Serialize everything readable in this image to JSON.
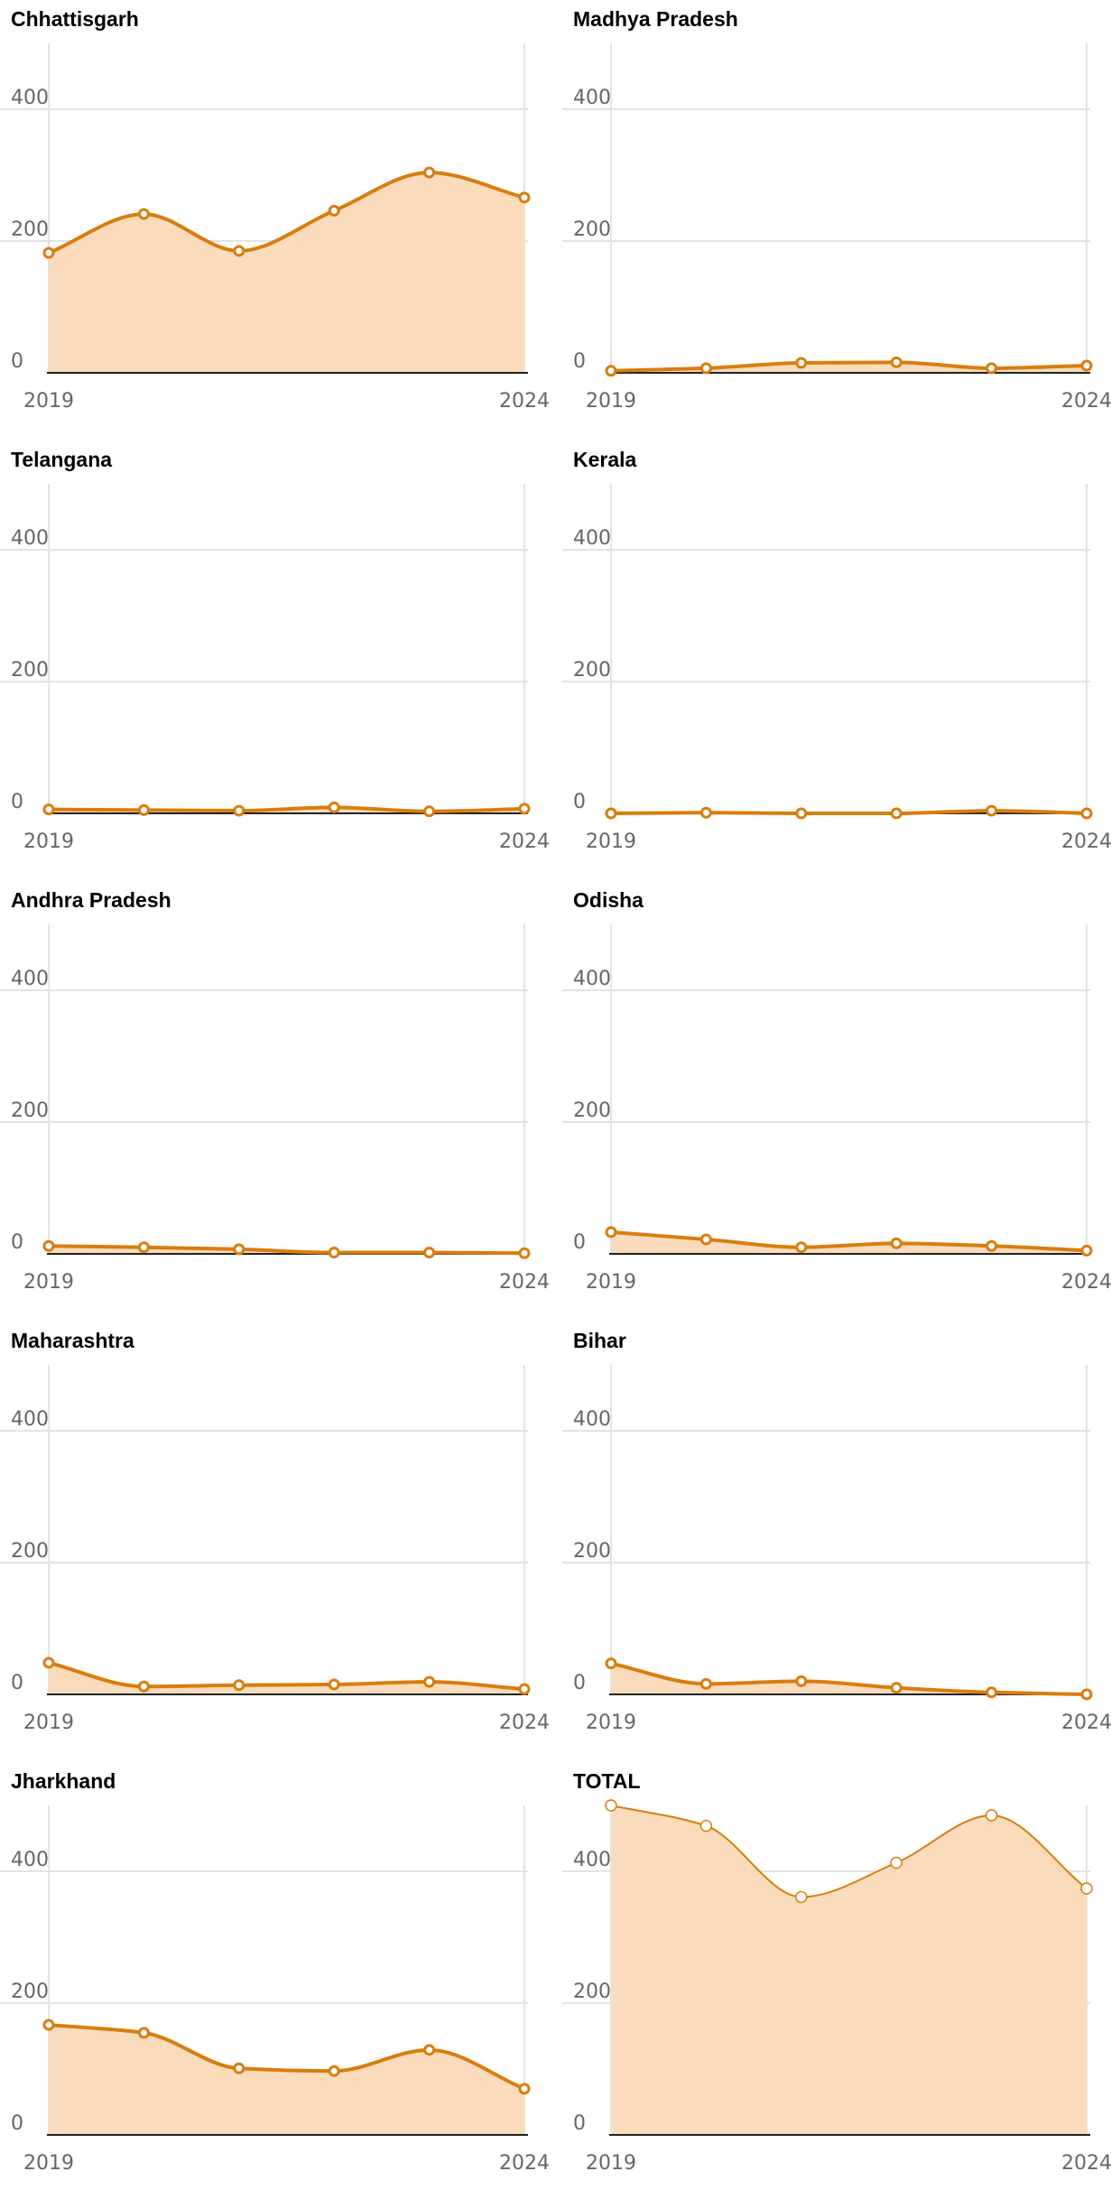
{
  "colors": {
    "line": "#d97d0d",
    "area": "#fadcbc",
    "grid": "#e3e3e3",
    "axis": "#222222",
    "tick_text": "#666666"
  },
  "chart_data": [
    {
      "type": "area",
      "title": "Chhattisgarh",
      "x": [
        2019,
        2020,
        2021,
        2022,
        2023,
        2024
      ],
      "xticks": [
        "2019",
        "2024"
      ],
      "yticks": [
        "0",
        "200",
        "400"
      ],
      "ylim": [
        0,
        500
      ],
      "values": [
        182,
        241,
        185,
        246,
        304,
        266
      ],
      "marker": "hollow"
    },
    {
      "type": "area",
      "title": "Madhya Pradesh",
      "x": [
        2019,
        2020,
        2021,
        2022,
        2023,
        2024
      ],
      "xticks": [
        "2019",
        "2024"
      ],
      "yticks": [
        "0",
        "200",
        "400"
      ],
      "ylim": [
        0,
        500
      ],
      "values": [
        3,
        7,
        15,
        16,
        7,
        11
      ],
      "marker": "hollow"
    },
    {
      "type": "area",
      "title": "Telangana",
      "x": [
        2019,
        2020,
        2021,
        2022,
        2023,
        2024
      ],
      "xticks": [
        "2019",
        "2024"
      ],
      "yticks": [
        "0",
        "200",
        "400"
      ],
      "ylim": [
        0,
        500
      ],
      "values": [
        6,
        5,
        4,
        9,
        3,
        7
      ],
      "marker": "hollow"
    },
    {
      "type": "area",
      "title": "Kerala",
      "x": [
        2019,
        2020,
        2021,
        2022,
        2023,
        2024
      ],
      "xticks": [
        "2019",
        "2024"
      ],
      "yticks": [
        "0",
        "200",
        "400"
      ],
      "ylim": [
        0,
        500
      ],
      "values": [
        0,
        1,
        0,
        0,
        4,
        0
      ],
      "marker": "hollow"
    },
    {
      "type": "area",
      "title": "Andhra Pradesh",
      "x": [
        2019,
        2020,
        2021,
        2022,
        2023,
        2024
      ],
      "xticks": [
        "2019",
        "2024"
      ],
      "yticks": [
        "0",
        "200",
        "400"
      ],
      "ylim": [
        0,
        500
      ],
      "values": [
        12,
        10,
        7,
        2,
        2,
        1
      ],
      "marker": "hollow"
    },
    {
      "type": "area",
      "title": "Odisha",
      "x": [
        2019,
        2020,
        2021,
        2022,
        2023,
        2024
      ],
      "xticks": [
        "2019",
        "2024"
      ],
      "yticks": [
        "0",
        "200",
        "400"
      ],
      "ylim": [
        0,
        500
      ],
      "values": [
        33,
        22,
        10,
        16,
        12,
        5
      ],
      "marker": "hollow"
    },
    {
      "type": "area",
      "title": "Maharashtra",
      "x": [
        2019,
        2020,
        2021,
        2022,
        2023,
        2024
      ],
      "xticks": [
        "2019",
        "2024"
      ],
      "yticks": [
        "0",
        "200",
        "400"
      ],
      "ylim": [
        0,
        500
      ],
      "values": [
        48,
        12,
        14,
        15,
        19,
        8
      ],
      "marker": "hollow"
    },
    {
      "type": "area",
      "title": "Bihar",
      "x": [
        2019,
        2020,
        2021,
        2022,
        2023,
        2024
      ],
      "xticks": [
        "2019",
        "2024"
      ],
      "yticks": [
        "0",
        "200",
        "400"
      ],
      "ylim": [
        0,
        500
      ],
      "values": [
        47,
        16,
        20,
        10,
        3,
        0
      ],
      "marker": "hollow"
    },
    {
      "type": "area",
      "title": "Jharkhand",
      "x": [
        2019,
        2020,
        2021,
        2022,
        2023,
        2024
      ],
      "xticks": [
        "2019",
        "2024"
      ],
      "yticks": [
        "0",
        "200",
        "400"
      ],
      "ylim": [
        0,
        500
      ],
      "values": [
        167,
        155,
        101,
        97,
        129,
        70
      ],
      "marker": "hollow"
    },
    {
      "type": "area",
      "title": "TOTAL",
      "x": [
        2019,
        2020,
        2021,
        2022,
        2023,
        2024
      ],
      "xticks": [
        "2019",
        "2024"
      ],
      "yticks": [
        "0",
        "200",
        "400"
      ],
      "ylim": [
        0,
        500
      ],
      "values": [
        500,
        469,
        361,
        413,
        485,
        374
      ],
      "marker": "filled-white"
    }
  ]
}
